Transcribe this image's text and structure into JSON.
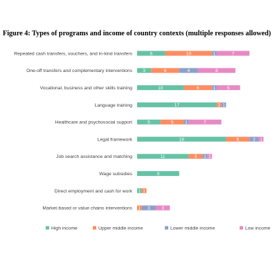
{
  "figure": {
    "title": "Figure 4: Types of programs and income of country contexts (multiple responses allowed)"
  },
  "colors": {
    "High income": "#66c2a5",
    "Upper middle income": "#fc8d62",
    "Lower middle income": "#8da0cb",
    "Low income": "#e78ac3"
  },
  "chart_data": {
    "type": "bar",
    "orientation": "horizontal",
    "stacked": true,
    "grid": false,
    "legend_position": "bottom",
    "categories": [
      "Repeated cash transfers, vouchers, and in-kind transfers",
      "One-off transfers and complementary interventions",
      "Vocational, business and other skills training",
      "Language training",
      "Healthcare and psychosocial support",
      "Legal framework",
      "Job search assistance and matching",
      "Wage subsidies",
      "Direct employment and cash for work",
      "Market-based or value chains interventions"
    ],
    "series": [
      {
        "name": "High income",
        "values": [
          6,
          3,
          10,
          17,
          5,
          19,
          11,
          9,
          1,
          0
        ]
      },
      {
        "name": "Upper middle income",
        "values": [
          10,
          6,
          6,
          1,
          5,
          5,
          3,
          0,
          1,
          1
        ]
      },
      {
        "name": "Lower middle income",
        "values": [
          1,
          4,
          1,
          1,
          1,
          2,
          1,
          0,
          0,
          3
        ]
      },
      {
        "name": "Low income",
        "values": [
          7,
          8,
          5,
          0,
          7,
          1,
          1,
          0,
          0,
          3
        ]
      }
    ]
  }
}
